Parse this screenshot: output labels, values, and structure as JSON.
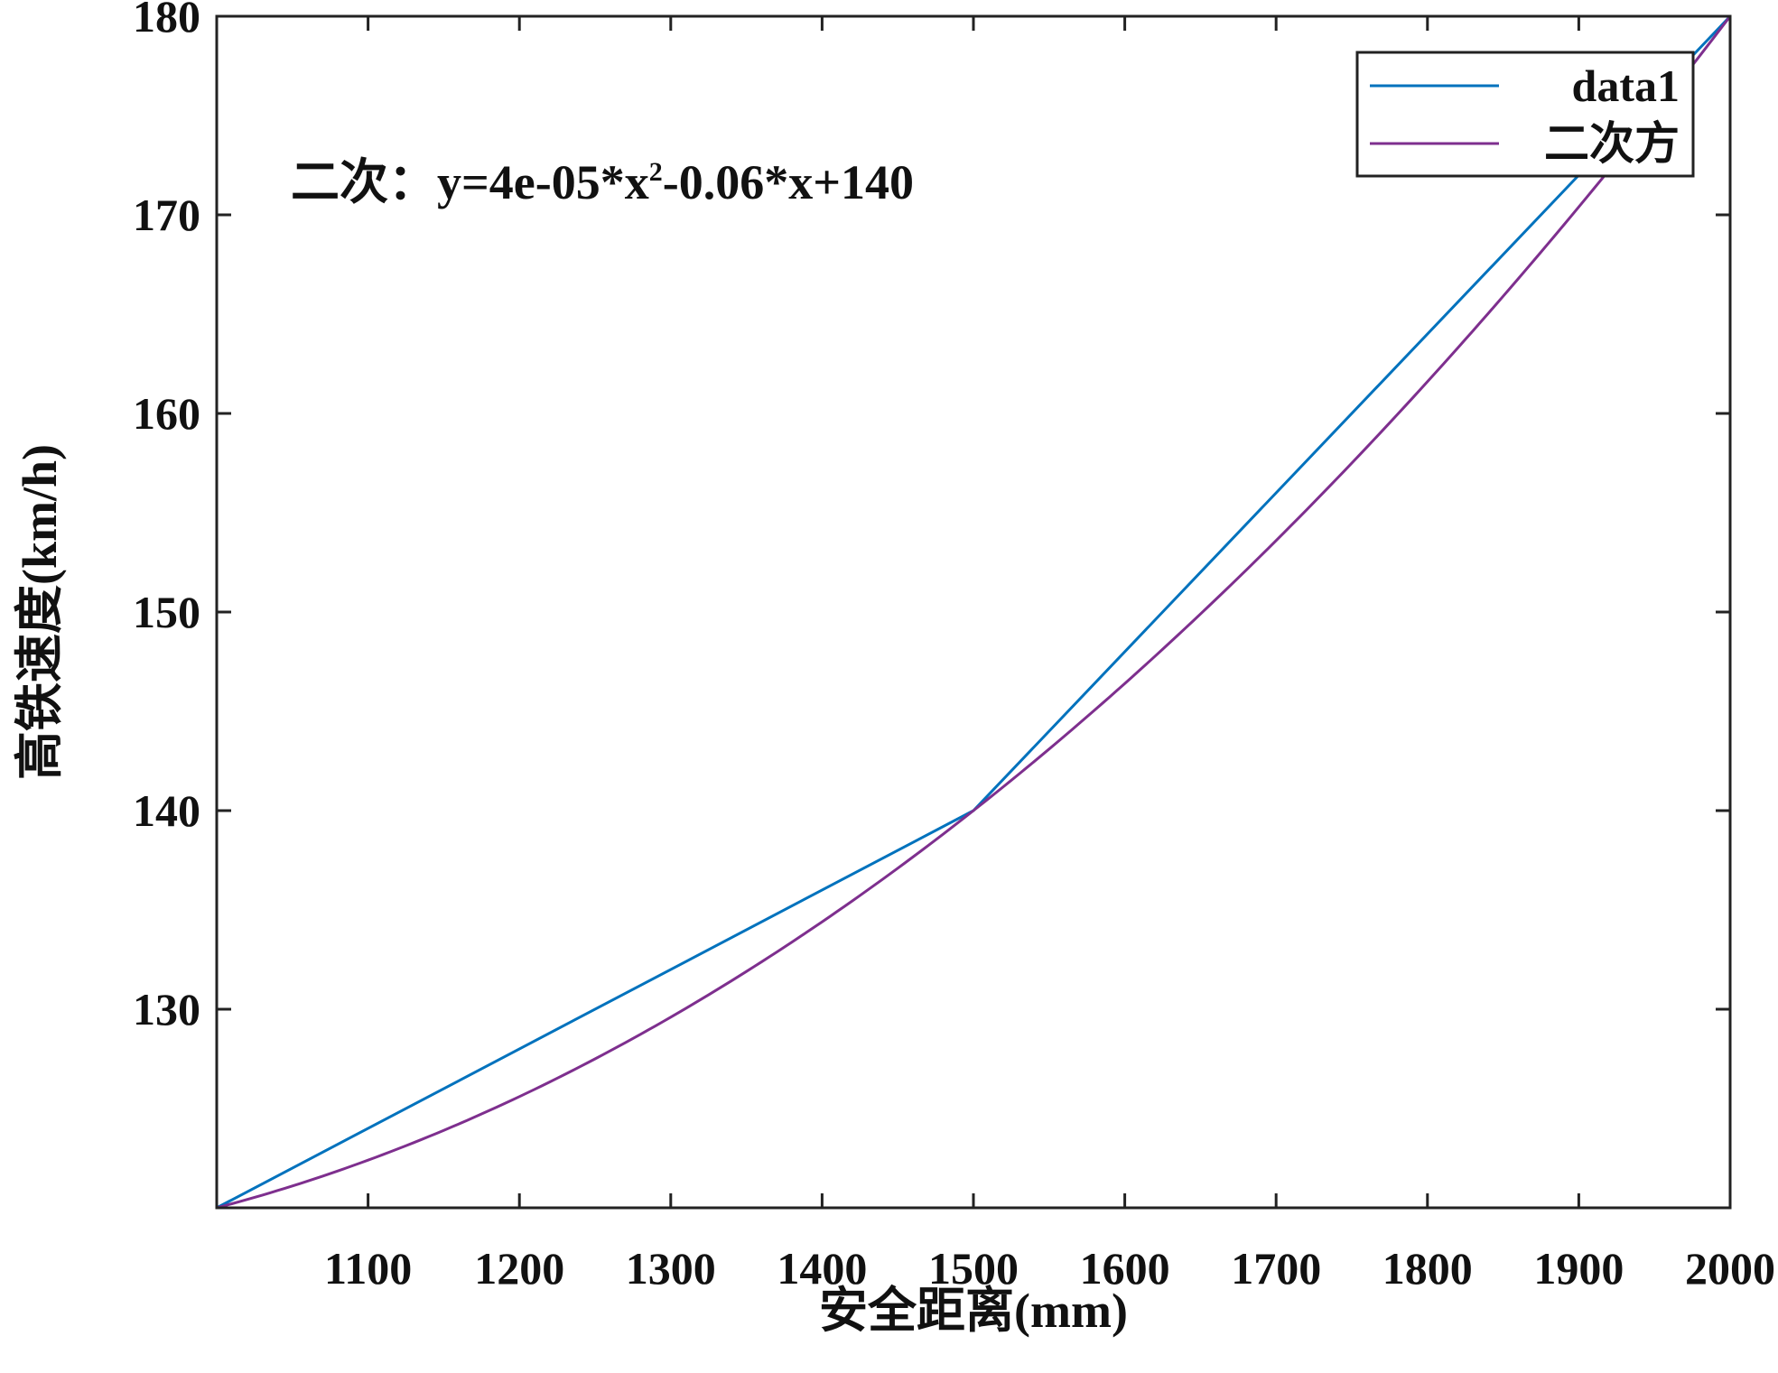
{
  "chart_data": {
    "type": "line",
    "xlabel": "安全距离(mm)",
    "ylabel": "高铁速度(km/h)",
    "xlim": [
      1000,
      2000
    ],
    "ylim": [
      120,
      180
    ],
    "xticks": [
      1100,
      1200,
      1300,
      1400,
      1500,
      1600,
      1700,
      1800,
      1900,
      2000
    ],
    "yticks": [
      130,
      140,
      150,
      160,
      170,
      180
    ],
    "grid": false,
    "legend_position": "top-right",
    "annotation": "二次：y=4e-05*x²-0.06*x+140",
    "series": [
      {
        "name": "data1",
        "color": "#0072bd",
        "kind": "polyline",
        "x": [
          1000,
          1500,
          2000
        ],
        "y": [
          120,
          140,
          180
        ]
      },
      {
        "name": "二次方",
        "color": "#7e2f8e",
        "kind": "fit",
        "coefficients": [
          4e-05,
          -0.06,
          140
        ],
        "x": [
          1000,
          1100,
          1200,
          1300,
          1400,
          1500,
          1600,
          1700,
          1800,
          1900,
          2000
        ],
        "y": [
          120,
          122.4,
          125.6,
          129.6,
          134.4,
          140,
          146.4,
          153.6,
          161.6,
          170.4,
          180
        ]
      }
    ]
  }
}
